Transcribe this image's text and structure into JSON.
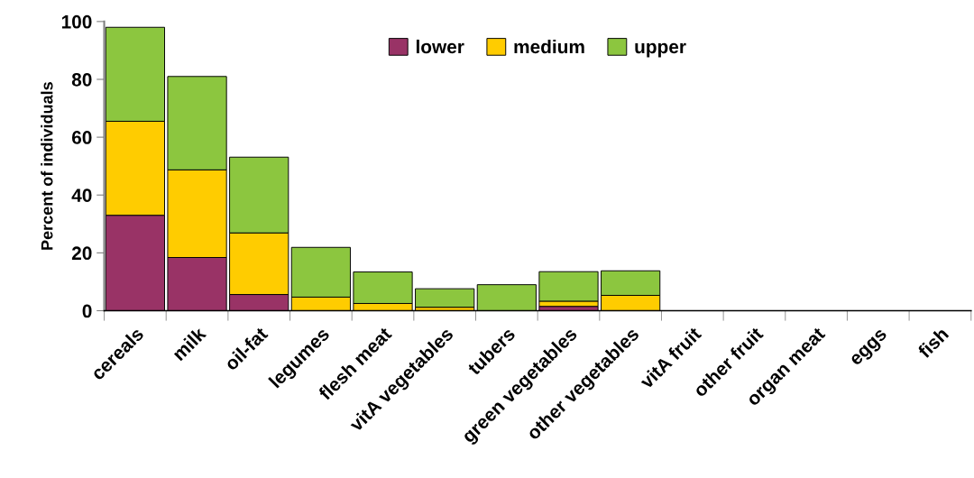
{
  "chart_data": {
    "type": "bar",
    "stacked": true,
    "ylabel": "Percent of individuals",
    "categories": [
      "cereals",
      "milk",
      "oil-fat",
      "legumes",
      "flesh meat",
      "vitA vegetables",
      "tubers",
      "green vegetables",
      "other vegetables",
      "vitA fruit",
      "other fruit",
      "organ meat",
      "eggs",
      "fish"
    ],
    "series": [
      {
        "name": "lower",
        "color": "#993366",
        "values": [
          33,
          18.4,
          5.6,
          0,
          0,
          0,
          null,
          1.5,
          null,
          0,
          0,
          0,
          0,
          0
        ]
      },
      {
        "name": "medium",
        "color": "#ffcc00",
        "values": [
          32.5,
          30.3,
          21.3,
          4.7,
          2.5,
          1.2,
          0,
          1.8,
          5.3,
          0,
          0,
          0,
          0,
          0
        ]
      },
      {
        "name": "upper",
        "color": "#8cc63f",
        "values": [
          32.5,
          32.3,
          26.2,
          17.2,
          10.9,
          6.4,
          9,
          10.2,
          8.5,
          0,
          0,
          0,
          0,
          0
        ]
      }
    ],
    "ylim": [
      0,
      100
    ],
    "yticks": [
      0,
      20,
      40,
      60,
      80,
      100
    ],
    "grid": false,
    "legend": "top"
  }
}
